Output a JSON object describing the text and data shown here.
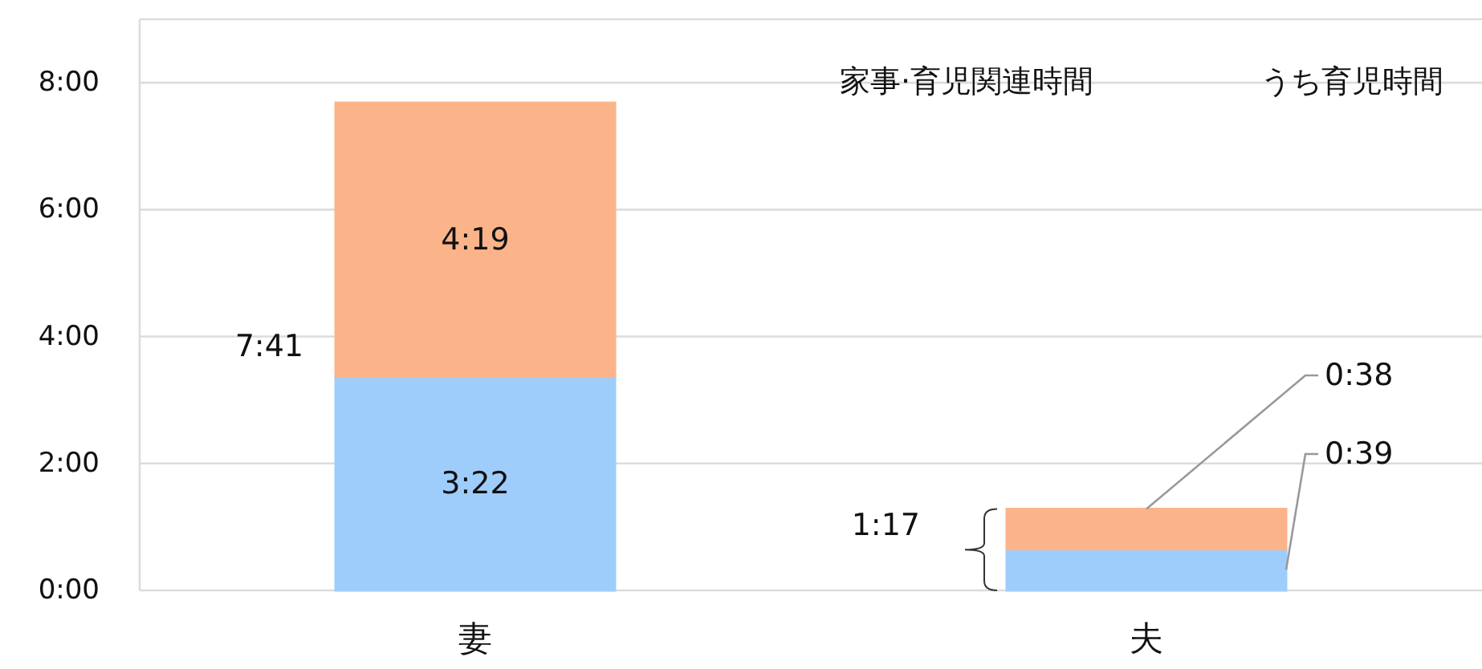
{
  "chart_data": {
    "type": "bar",
    "stacked": true,
    "categories": [
      "妻",
      "夫"
    ],
    "series": [
      {
        "color": "#9fcdfb",
        "values": [
          3.367,
          0.65
        ],
        "value_labels": [
          "3:22",
          "0:39"
        ]
      },
      {
        "color": "#fbb48a",
        "values": [
          4.317,
          0.633
        ],
        "value_labels": [
          "4:19",
          "0:38"
        ]
      }
    ],
    "totals": [
      "7:41",
      "1:17"
    ],
    "ylim": [
      0,
      9
    ],
    "yticks": [
      {
        "value": 0,
        "label": "0:00"
      },
      {
        "value": 2,
        "label": "2:00"
      },
      {
        "value": 4,
        "label": "4:00"
      },
      {
        "value": 6,
        "label": "6:00"
      },
      {
        "value": 8,
        "label": "8:00"
      }
    ],
    "grid": "y",
    "annotations": [
      "家事·育児関連時間",
      "うち育児時間"
    ]
  }
}
